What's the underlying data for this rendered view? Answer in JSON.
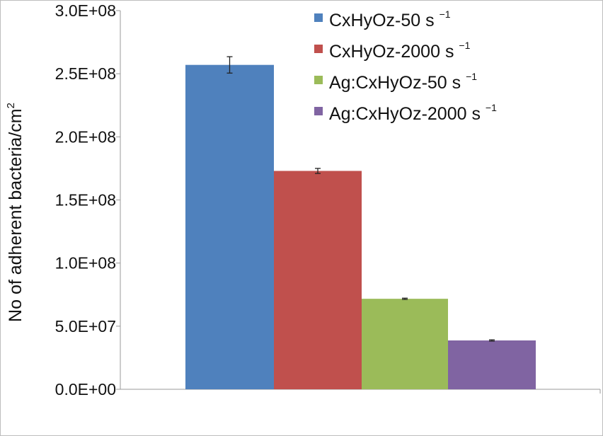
{
  "chart_data": {
    "type": "bar",
    "title": "",
    "xlabel": "",
    "ylabel": "No of adherent bacteria/cm",
    "ylabel_superscript": "2",
    "ylim": [
      0,
      300000000
    ],
    "yticks": [
      0,
      50000000,
      100000000,
      150000000,
      200000000,
      250000000,
      300000000
    ],
    "ytick_labels": [
      "0.0E+00",
      "5.0E+07",
      "1.0E+08",
      "1.5E+08",
      "2.0E+08",
      "2.5E+08",
      "3.0E+08"
    ],
    "grid": false,
    "legend_position": "top-right",
    "series": [
      {
        "name": "CxHyOz-50 s",
        "unit_superscript": "−1",
        "value": 257000000,
        "error": 6500000,
        "color": "#4F81BD"
      },
      {
        "name": "CxHyOz-2000 s",
        "unit_superscript": "−1",
        "value": 173000000,
        "error": 2000000,
        "color": "#C0504D"
      },
      {
        "name": "Ag:CxHyOz-50 s",
        "unit_superscript": "−1",
        "value": 71700000,
        "error": 500000,
        "color": "#9BBB59"
      },
      {
        "name": "Ag:CxHyOz-2000 s",
        "unit_superscript": "−1",
        "value": 38700000,
        "error": 500000,
        "color": "#8064A2"
      }
    ]
  }
}
